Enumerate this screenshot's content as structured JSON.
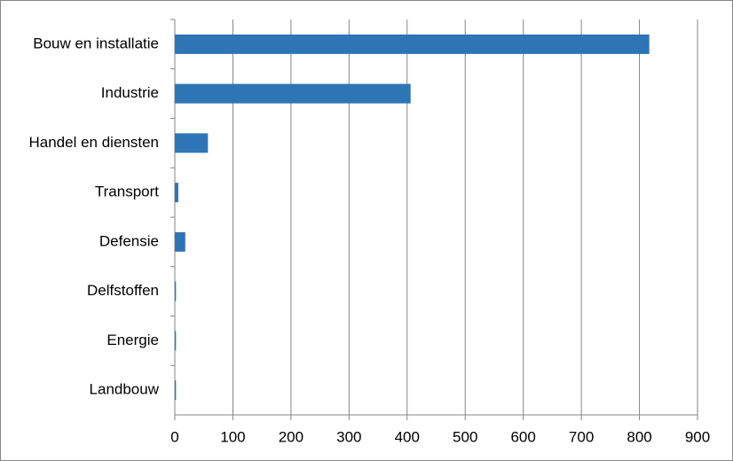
{
  "chart_data": {
    "type": "bar",
    "orientation": "horizontal",
    "categories": [
      "Bouw en installatie",
      "Industrie",
      "Handel en diensten",
      "Transport",
      "Defensie",
      "Delfstoffen",
      "Energie",
      "Landbouw"
    ],
    "values": [
      817,
      406,
      57,
      6,
      18,
      2,
      2,
      2
    ],
    "color": "#2e75b6",
    "xlim": [
      0,
      900
    ],
    "xticks": [
      0,
      100,
      200,
      300,
      400,
      500,
      600,
      700,
      800,
      900
    ],
    "grid": true
  }
}
